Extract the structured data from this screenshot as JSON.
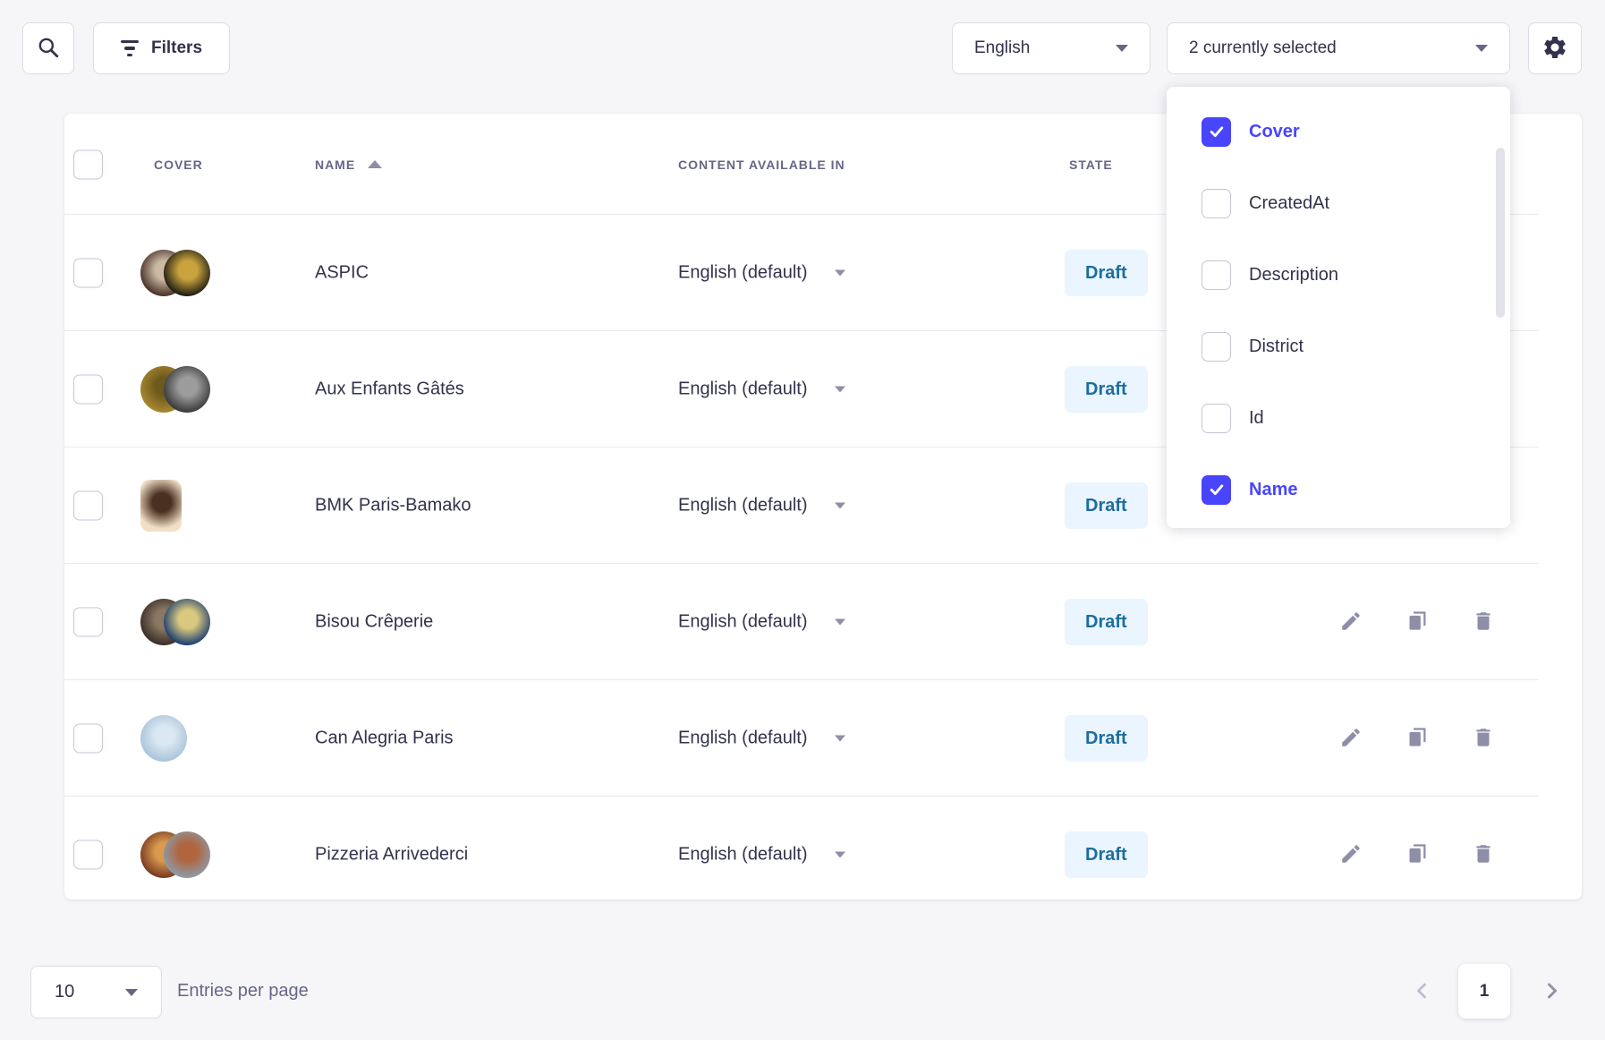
{
  "toolbar": {
    "filters_label": "Filters",
    "language_selected": "English",
    "columns_selected": "2 currently selected"
  },
  "column_dropdown": {
    "items": [
      {
        "label": "Cover",
        "checked": true
      },
      {
        "label": "CreatedAt",
        "checked": false
      },
      {
        "label": "Description",
        "checked": false
      },
      {
        "label": "District",
        "checked": false
      },
      {
        "label": "Id",
        "checked": false
      },
      {
        "label": "Name",
        "checked": true
      }
    ]
  },
  "table": {
    "headers": {
      "cover": "COVER",
      "name": "NAME",
      "content_available_in": "CONTENT AVAILABLE IN",
      "state": "STATE"
    },
    "rows": [
      {
        "name": "ASPIC",
        "locale": "English (default)",
        "state": "Draft",
        "cover": {
          "type": "pair",
          "shape": "circle",
          "images": [
            [
              "#4a3328",
              "#cbb9a4"
            ],
            [
              "#211d14",
              "#c9a43e"
            ]
          ]
        }
      },
      {
        "name": "Aux Enfants Gâtés",
        "locale": "English (default)",
        "state": "Draft",
        "cover": {
          "type": "pair",
          "shape": "circle",
          "images": [
            [
              "#a8872f",
              "#6e5a1d"
            ],
            [
              "#3a3a3a",
              "#9c9c9c"
            ]
          ]
        }
      },
      {
        "name": "BMK Paris-Bamako",
        "locale": "English (default)",
        "state": "Draft",
        "cover": {
          "type": "single",
          "shape": "rounded",
          "images": [
            [
              "#f2dfc8",
              "#4a3020"
            ]
          ]
        }
      },
      {
        "name": "Bisou Crêperie",
        "locale": "English (default)",
        "state": "Draft",
        "cover": {
          "type": "pair",
          "shape": "circle",
          "images": [
            [
              "#3b2f28",
              "#8a7864"
            ],
            [
              "#1e3f73",
              "#d9c97e"
            ]
          ]
        }
      },
      {
        "name": "Can Alegria Paris",
        "locale": "English (default)",
        "state": "Draft",
        "cover": {
          "type": "single",
          "shape": "circle",
          "images": [
            [
              "#a9c4da",
              "#dce8f1"
            ]
          ]
        }
      },
      {
        "name": "Pizzeria Arrivederci",
        "locale": "English (default)",
        "state": "Draft",
        "cover": {
          "type": "pair",
          "shape": "circle",
          "images": [
            [
              "#7a3b22",
              "#d99a4e"
            ],
            [
              "#8d9aa8",
              "#b0653f"
            ]
          ]
        }
      }
    ]
  },
  "pagination": {
    "page_size": "10",
    "entries_label": "Entries per page",
    "current_page": "1"
  },
  "colors": {
    "primary": "#4945ff",
    "draft_badge_bg": "#eaf5ff",
    "draft_badge_text": "#1d6d9e",
    "background": "#f6f6f9",
    "text_dark": "#32324d",
    "text_muted": "#666687",
    "border": "#dcdce4"
  }
}
